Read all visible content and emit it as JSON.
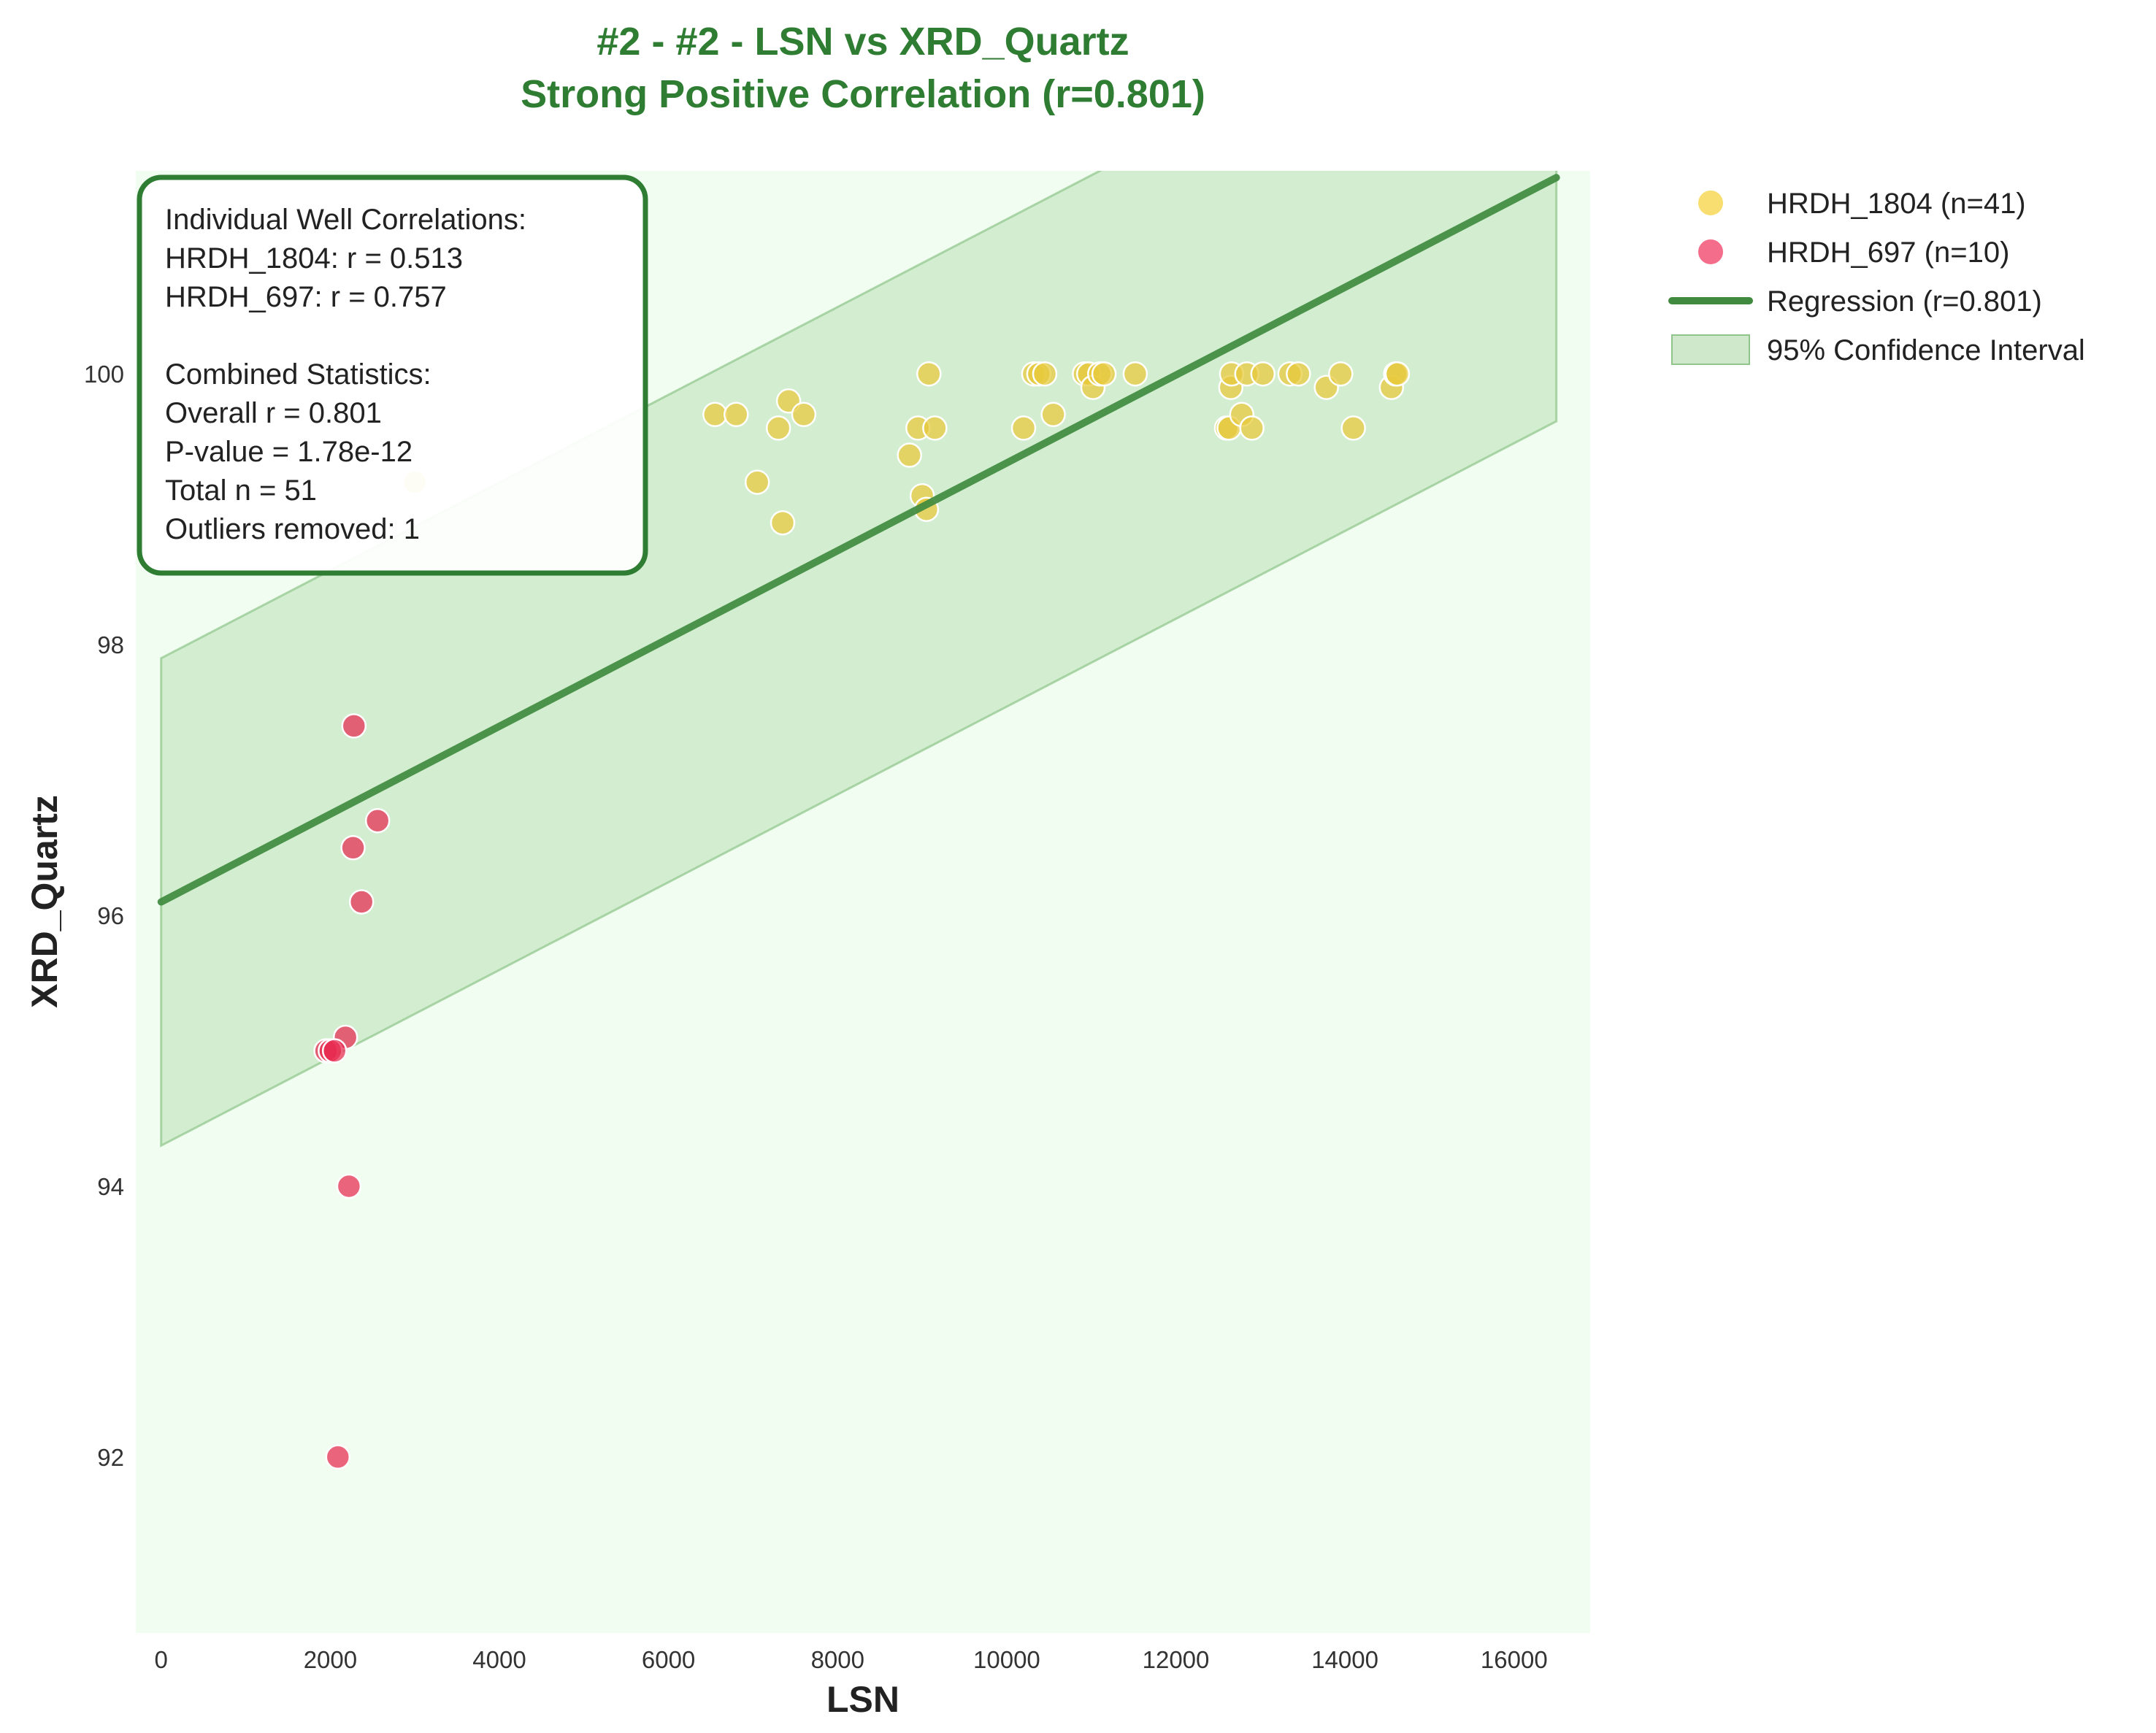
{
  "title": {
    "line1": "#2 - #2 - LSN vs XRD_Quartz",
    "line2": "Strong Positive Correlation (r=0.801)",
    "color": "#2e7d32"
  },
  "stats_box": {
    "lines": [
      "Individual Well Correlations:",
      "HRDH_1804: r = 0.513",
      "HRDH_697: r = 0.757",
      "",
      "Combined Statistics:",
      "Overall r = 0.801",
      "P-value = 1.78e-12",
      "Total n = 51",
      "Outliers removed: 1"
    ]
  },
  "legend": {
    "placement": "outside-top-right",
    "items": [
      {
        "label": "HRDH_1804 (n=41)",
        "kind": "marker",
        "color": "#f5d033"
      },
      {
        "label": "HRDH_697 (n=10)",
        "kind": "marker",
        "color": "#f0305a"
      },
      {
        "label": "Regression (r=0.801)",
        "kind": "line",
        "color": "#3f8a3f"
      },
      {
        "label": "95% Confidence Interval",
        "kind": "patch",
        "color": "#a8d5a2"
      }
    ]
  },
  "colors": {
    "plot_background": "#f0fdf0",
    "hrdh_1804": "#e8c93a",
    "hrdh_697": "#e8294f",
    "regression": "#3f8a3f",
    "ci_fill": "#b5dbb0"
  },
  "chart_data": {
    "type": "scatter",
    "xlabel": "LSN",
    "ylabel": "XRD_Quartz",
    "xlim": [
      -300,
      16900
    ],
    "ylim": [
      90.7,
      101.5
    ],
    "xticks": [
      0,
      2000,
      4000,
      6000,
      8000,
      10000,
      12000,
      14000,
      16000
    ],
    "yticks": [
      92,
      94,
      96,
      98,
      100
    ],
    "grid": false,
    "series": [
      {
        "name": "HRDH_1804 (n=41)",
        "points": [
          [
            3000,
            99.2
          ],
          [
            6550,
            99.7
          ],
          [
            6800,
            99.7
          ],
          [
            7050,
            99.2
          ],
          [
            7300,
            99.6
          ],
          [
            7350,
            98.9
          ],
          [
            7420,
            99.8
          ],
          [
            7600,
            99.7
          ],
          [
            8850,
            99.4
          ],
          [
            8950,
            99.6
          ],
          [
            9000,
            99.1
          ],
          [
            9050,
            99.0
          ],
          [
            9080,
            100.0
          ],
          [
            9150,
            99.6
          ],
          [
            10200,
            99.6
          ],
          [
            10320,
            100.0
          ],
          [
            10380,
            100.0
          ],
          [
            10450,
            100.0
          ],
          [
            10550,
            99.7
          ],
          [
            10920,
            100.0
          ],
          [
            10970,
            100.0
          ],
          [
            11020,
            99.9
          ],
          [
            11100,
            100.0
          ],
          [
            11150,
            100.0
          ],
          [
            11520,
            100.0
          ],
          [
            12600,
            99.6
          ],
          [
            12630,
            99.6
          ],
          [
            12650,
            99.9
          ],
          [
            12660,
            100.0
          ],
          [
            12780,
            99.7
          ],
          [
            12840,
            100.0
          ],
          [
            12900,
            99.6
          ],
          [
            13030,
            100.0
          ],
          [
            13350,
            100.0
          ],
          [
            13450,
            100.0
          ],
          [
            13780,
            99.9
          ],
          [
            13950,
            100.0
          ],
          [
            14100,
            99.6
          ],
          [
            14550,
            99.9
          ],
          [
            14600,
            100.0
          ],
          [
            14620,
            100.0
          ]
        ]
      },
      {
        "name": "HRDH_697 (n=10)",
        "points": [
          [
            2280,
            97.4
          ],
          [
            2560,
            96.7
          ],
          [
            2270,
            96.5
          ],
          [
            2370,
            96.1
          ],
          [
            2180,
            95.1
          ],
          [
            1950,
            95.0
          ],
          [
            2000,
            95.0
          ],
          [
            2050,
            95.0
          ],
          [
            2220,
            94.0
          ],
          [
            2090,
            92.0
          ]
        ]
      }
    ],
    "regression": {
      "name": "Regression (r=0.801)",
      "x": [
        0,
        16500
      ],
      "y": [
        96.1,
        101.45
      ]
    },
    "confidence_band": {
      "name": "95% Confidence Interval",
      "x": [
        0,
        16500
      ],
      "lower": [
        94.3,
        99.65
      ],
      "upper": [
        97.9,
        103.25
      ]
    }
  }
}
